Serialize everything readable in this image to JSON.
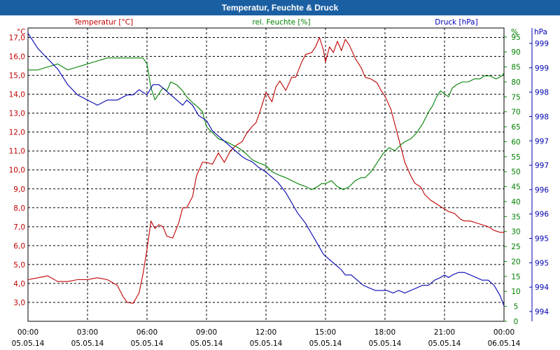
{
  "window": {
    "title": "Temperatur, Feuchte & Druck"
  },
  "colors": {
    "temperature": "#c00000",
    "humidity": "#008000",
    "pressure": "#0000b0",
    "grid": "#000000",
    "title_bg": "#1b5fa3"
  },
  "chart_data": {
    "type": "line",
    "title": "Temperatur, Feuchte & Druck",
    "x_ticks": [
      {
        "time": "00:00",
        "date": "05.05.14"
      },
      {
        "time": "03:00",
        "date": "05.05.14"
      },
      {
        "time": "06:00",
        "date": "05.05.14"
      },
      {
        "time": "09:00",
        "date": "05.05.14"
      },
      {
        "time": "12:00",
        "date": "05.05.14"
      },
      {
        "time": "15:00",
        "date": "05.05.14"
      },
      {
        "time": "18:00",
        "date": "05.05.14"
      },
      {
        "time": "21:00",
        "date": "05.05.14"
      },
      {
        "time": "00:00",
        "date": "06.05.14"
      }
    ],
    "xlim": [
      0,
      24
    ],
    "grid": true,
    "axes": {
      "temperature": {
        "unit": "°C",
        "ylim": [
          2.0,
          17.5
        ],
        "ticks": [
          "3,0",
          "4,0",
          "5,0",
          "6,0",
          "7,0",
          "8,0",
          "9,0",
          "10,0",
          "11,0",
          "12,0",
          "13,0",
          "14,0",
          "15,0",
          "16,0",
          "17,0"
        ]
      },
      "humidity": {
        "unit": "%",
        "ylim": [
          0,
          98
        ],
        "ticks": [
          "0",
          "5",
          "10",
          "15",
          "20",
          "25",
          "30",
          "35",
          "40",
          "45",
          "50",
          "55",
          "60",
          "65",
          "70",
          "75",
          "80",
          "85",
          "90",
          "95"
        ]
      },
      "pressure": {
        "unit": "hPa",
        "ylim": [
          993.6,
          999.3
        ],
        "ticks": [
          "994",
          "994",
          "995",
          "995",
          "996",
          "996",
          "997",
          "997",
          "998",
          "998",
          "999",
          "999"
        ]
      }
    },
    "series": [
      {
        "name": "Temperatur [°C]",
        "axis": "temperature",
        "x": [
          0,
          0.5,
          1,
          1.5,
          2,
          2.5,
          3,
          3.5,
          4,
          4.5,
          4.8,
          5,
          5.3,
          5.6,
          5.8,
          6.0,
          6.2,
          6.4,
          6.6,
          6.8,
          7,
          7.3,
          7.6,
          7.8,
          8,
          8.3,
          8.5,
          8.8,
          9,
          9.3,
          9.6,
          9.9,
          10.2,
          10.5,
          10.8,
          11,
          11.3,
          11.5,
          11.7,
          12,
          12.3,
          12.5,
          12.7,
          13,
          13.3,
          13.5,
          13.8,
          14,
          14.3,
          14.5,
          14.7,
          14.9,
          15,
          15.2,
          15.4,
          15.6,
          15.8,
          16,
          16.2,
          16.5,
          16.8,
          17,
          17.3,
          17.6,
          17.8,
          18,
          18.3,
          18.5,
          18.8,
          19,
          19.3,
          19.5,
          19.8,
          20,
          20.3,
          20.6,
          20.9,
          21.2,
          21.5,
          21.8,
          22,
          22.3,
          22.6,
          22.9,
          23.2,
          23.5,
          23.8,
          24
        ],
        "values": [
          4.2,
          4.3,
          4.4,
          4.1,
          4.1,
          4.2,
          4.2,
          4.3,
          4.2,
          3.9,
          3.3,
          3.0,
          2.95,
          3.5,
          4.5,
          5.8,
          7.3,
          6.9,
          7.1,
          7.0,
          6.5,
          6.4,
          7.2,
          8.0,
          8.0,
          8.6,
          9.7,
          10.4,
          10.4,
          10.3,
          10.9,
          10.4,
          11.0,
          11.3,
          11.5,
          11.9,
          12.3,
          12.5,
          13.1,
          14.1,
          13.6,
          14.4,
          14.7,
          14.2,
          14.9,
          14.9,
          15.7,
          16.1,
          16.2,
          16.5,
          17.0,
          16.3,
          15.7,
          16.5,
          16.2,
          16.8,
          16.3,
          16.9,
          16.6,
          15.9,
          15.4,
          14.9,
          14.8,
          14.6,
          14.2,
          13.9,
          13.2,
          12.4,
          11.2,
          10.4,
          9.7,
          9.3,
          9.1,
          8.7,
          8.4,
          8.2,
          8.0,
          7.8,
          7.7,
          7.4,
          7.3,
          7.3,
          7.2,
          7.1,
          7.0,
          6.8,
          6.7,
          6.7
        ]
      },
      {
        "name": "rel. Feuchte [%]",
        "axis": "humidity",
        "x": [
          0,
          0.5,
          1,
          1.5,
          2,
          2.5,
          3,
          3.5,
          4,
          4.5,
          5,
          5.5,
          5.8,
          6.0,
          6.2,
          6.4,
          6.6,
          6.8,
          7,
          7.2,
          7.5,
          7.8,
          8,
          8.3,
          8.5,
          8.8,
          9,
          9.3,
          9.6,
          10,
          10.3,
          10.6,
          11,
          11.3,
          11.6,
          12,
          12.3,
          12.6,
          13,
          13.3,
          13.6,
          14,
          14.3,
          14.6,
          14.8,
          15,
          15.3,
          15.6,
          15.9,
          16.2,
          16.5,
          16.8,
          17,
          17.3,
          17.6,
          17.9,
          18.2,
          18.5,
          18.8,
          19,
          19.3,
          19.6,
          19.9,
          20.2,
          20.4,
          20.6,
          20.8,
          21,
          21.2,
          21.4,
          21.6,
          21.9,
          22.2,
          22.5,
          22.8,
          23,
          23.3,
          23.6,
          23.9,
          24
        ],
        "values": [
          84,
          84,
          85,
          86,
          84,
          85,
          86,
          87,
          88,
          88,
          88,
          88,
          88,
          86,
          78,
          74,
          76,
          78,
          77,
          80,
          79,
          77,
          75,
          73,
          72,
          70,
          65,
          63,
          61,
          60,
          59,
          58,
          56,
          54,
          53,
          52,
          50,
          49,
          48,
          47,
          46,
          45,
          44,
          45,
          46,
          46,
          47,
          45,
          44,
          45,
          47,
          48,
          48,
          50,
          53,
          56,
          58,
          57,
          59,
          60,
          61,
          63,
          66,
          70,
          72,
          75,
          77,
          76,
          75,
          78,
          79,
          80,
          80,
          81,
          81,
          82,
          82,
          81,
          82,
          83
        ]
      },
      {
        "name": "Druck [hPa]",
        "axis": "pressure",
        "x": [
          0,
          0.5,
          1,
          1.5,
          2,
          2.5,
          3,
          3.5,
          4,
          4.5,
          5,
          5.3,
          5.6,
          6,
          6.3,
          6.6,
          6.9,
          7.2,
          7.5,
          7.8,
          8,
          8.3,
          8.6,
          9,
          9.3,
          9.6,
          9.9,
          10.2,
          10.5,
          10.8,
          11,
          11.3,
          11.6,
          12,
          12.3,
          12.6,
          13,
          13.3,
          13.6,
          14,
          14.3,
          14.6,
          14.9,
          15.2,
          15.5,
          15.8,
          16,
          16.3,
          16.6,
          16.9,
          17.2,
          17.5,
          17.8,
          18.1,
          18.4,
          18.7,
          19,
          19.3,
          19.6,
          19.9,
          20.2,
          20.5,
          20.8,
          21,
          21.2,
          21.4,
          21.7,
          22,
          22.3,
          22.6,
          22.9,
          23.2,
          23.5,
          23.8,
          24
        ],
        "values": [
          999.2,
          998.9,
          998.7,
          998.5,
          998.2,
          998.0,
          997.9,
          997.8,
          997.9,
          997.9,
          998.0,
          998.0,
          998.1,
          998.0,
          998.2,
          998.2,
          998.1,
          998.0,
          997.9,
          997.8,
          997.9,
          997.8,
          997.6,
          997.5,
          997.3,
          997.2,
          997.1,
          997.0,
          996.9,
          996.8,
          996.75,
          996.7,
          996.6,
          996.5,
          996.4,
          996.3,
          996.1,
          995.9,
          995.7,
          995.5,
          995.3,
          995.1,
          994.9,
          994.8,
          994.7,
          994.6,
          994.5,
          994.5,
          994.4,
          994.3,
          994.25,
          994.2,
          994.2,
          994.2,
          994.15,
          994.2,
          994.15,
          994.2,
          994.25,
          994.3,
          994.3,
          994.4,
          994.45,
          994.5,
          994.45,
          994.5,
          994.55,
          994.55,
          994.5,
          994.45,
          994.4,
          994.4,
          994.3,
          994.1,
          993.9
        ]
      }
    ]
  }
}
